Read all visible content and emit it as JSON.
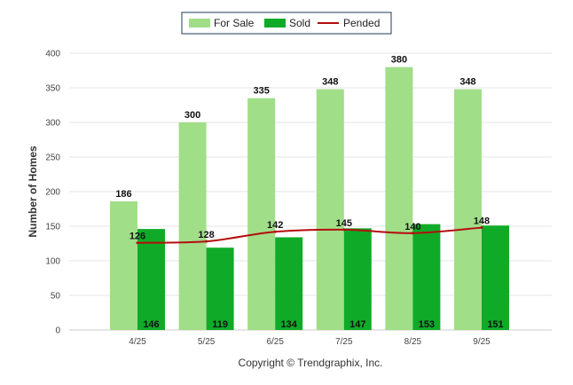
{
  "chart_data": {
    "type": "bar",
    "categories": [
      "4/25",
      "5/25",
      "6/25",
      "7/25",
      "8/25",
      "9/25"
    ],
    "series": [
      {
        "name": "For Sale",
        "kind": "bar",
        "color": "#a0de88",
        "values": [
          186,
          300,
          335,
          348,
          380,
          348
        ]
      },
      {
        "name": "Sold",
        "kind": "bar",
        "color": "#0fab28",
        "values": [
          146,
          119,
          134,
          147,
          153,
          151
        ]
      },
      {
        "name": "Pended",
        "kind": "line",
        "color": "#b40d0d",
        "values": [
          126,
          128,
          142,
          145,
          140,
          148
        ]
      }
    ],
    "title": "",
    "xlabel": "",
    "ylabel": "Number of Homes",
    "ylim": [
      0,
      400
    ],
    "yticks": [
      0,
      50,
      100,
      150,
      200,
      250,
      300,
      350,
      400
    ],
    "grid": true,
    "legend_position": "top-center"
  },
  "credit": "Copyright © Trendgraphix, Inc."
}
